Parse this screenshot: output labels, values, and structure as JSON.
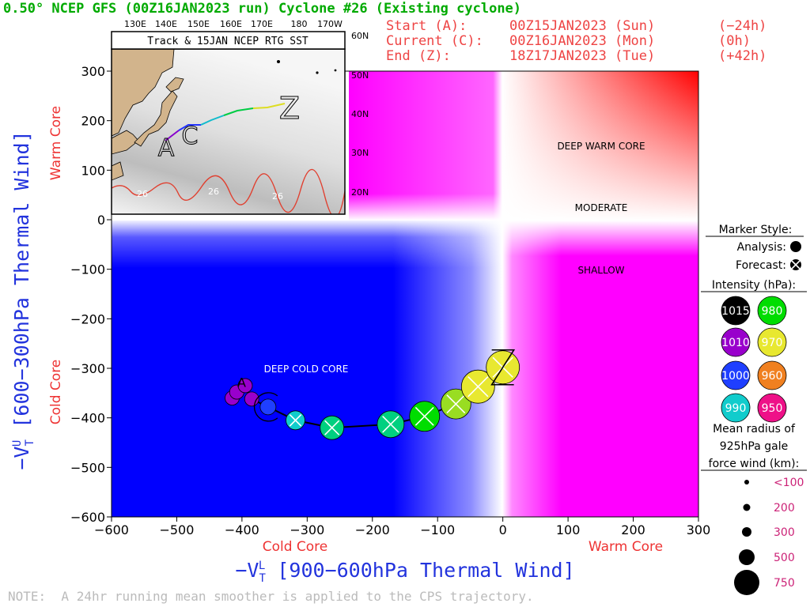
{
  "header": {
    "title": "0.50° NCEP GFS (00Z16JAN2023 run) Cyclone #26 (Existing cyclone)",
    "start_label": "Start (A):",
    "start_time": "00Z15JAN2023 (Sun)",
    "start_offset": "(−24h)",
    "current_label": "Current (C):",
    "current_time": "00Z16JAN2023 (Mon)",
    "current_offset": "(0h)",
    "end_label": "End (Z):",
    "end_time": "18Z17JAN2023 (Tue)",
    "end_offset": "(+42h)"
  },
  "inset": {
    "title": "Track & 15JAN NCEP RTG SST",
    "lon_labels": [
      "130E",
      "140E",
      "150E",
      "160E",
      "170E",
      "180",
      "170W"
    ],
    "lat_labels": [
      "60N",
      "50N",
      "40N",
      "30N",
      "20N"
    ],
    "sst_labels": [
      "26",
      "26",
      "26"
    ],
    "point_labels": {
      "start": "A",
      "current": "C",
      "end": "Z"
    }
  },
  "legend": {
    "marker_style_title": "Marker Style:",
    "analysis_label": "Analysis:",
    "forecast_label": "Forecast:",
    "intensity_title": "Intensity (hPa):",
    "intensity_items": [
      {
        "value": "1015",
        "color": "#000000",
        "text_color": "#ffffff"
      },
      {
        "value": "980",
        "color": "#00dd00",
        "text_color": "#ffffff"
      },
      {
        "value": "1010",
        "color": "#9900cc",
        "text_color": "#ffffff"
      },
      {
        "value": "970",
        "color": "#e8e830",
        "text_color": "#ffffff"
      },
      {
        "value": "1000",
        "color": "#1f3fff",
        "text_color": "#ffffff"
      },
      {
        "value": "960",
        "color": "#f08020",
        "text_color": "#ffffff"
      },
      {
        "value": "990",
        "color": "#11cccc",
        "text_color": "#ffffff"
      },
      {
        "value": "950",
        "color": "#ee1188",
        "text_color": "#ffffff"
      }
    ],
    "radius_title_1": "Mean radius of",
    "radius_title_2": "925hPa gale",
    "radius_title_3": "force wind (km):",
    "radius_items": [
      {
        "label": "<100",
        "km": 100
      },
      {
        "label": "200",
        "km": 200
      },
      {
        "label": "300",
        "km": 300
      },
      {
        "label": "500",
        "km": 500
      },
      {
        "label": "750",
        "km": 750
      }
    ]
  },
  "footer_note": "NOTE:  A 24hr running mean smoother is applied to the CPS trajectory.",
  "chart_data": {
    "type": "scatter",
    "xlabel_main": "−V",
    "xlabel_sup": "L",
    "xlabel_sub": "T",
    "xlabel_rest": " [900−600hPa Thermal Wind]",
    "ylabel_main": "−V",
    "ylabel_sup": "U",
    "ylabel_sub": "T",
    "ylabel_rest": " [600−300hPa Thermal Wind]",
    "x_side_labels": {
      "left": "Cold Core",
      "right": "Warm Core"
    },
    "y_side_labels": {
      "bottom": "Cold Core",
      "top": "Warm Core"
    },
    "xlim": [
      -600,
      300
    ],
    "ylim": [
      -600,
      300
    ],
    "x_ticks": [
      -600,
      -500,
      -400,
      -300,
      -200,
      -100,
      0,
      100,
      200,
      300
    ],
    "x_tick_labels": [
      "−600",
      "−500",
      "−400",
      "−300",
      "−200",
      "−100",
      "0",
      "100",
      "200",
      "300"
    ],
    "y_ticks": [
      300,
      200,
      100,
      0,
      -100,
      -200,
      -300,
      -400,
      -500,
      -600
    ],
    "y_tick_labels": [
      "300",
      "200",
      "100",
      "0",
      "−100",
      "−200",
      "−300",
      "−400",
      "−500",
      "−600"
    ],
    "region_labels": {
      "deep_warm": "DEEP WARM CORE",
      "moderate": "MODERATE",
      "shallow": "SHALLOW",
      "deep_cold": "DEEP COLD CORE"
    },
    "track_labels": {
      "start": "A",
      "current": "C",
      "end": "Z"
    },
    "points": [
      {
        "x": -415,
        "y": -360,
        "kind": "analysis",
        "color": "#9900cc",
        "size_px": 9
      },
      {
        "x": -408,
        "y": -348,
        "kind": "analysis",
        "color": "#9900cc",
        "size_px": 9
      },
      {
        "x": -395,
        "y": -335,
        "kind": "analysis",
        "color": "#9900cc",
        "size_px": 9
      },
      {
        "x": -385,
        "y": -362,
        "kind": "analysis",
        "color": "#9900cc",
        "size_px": 9
      },
      {
        "x": -360,
        "y": -378,
        "kind": "analysis",
        "color": "#1f3fff",
        "size_px": 10
      },
      {
        "x": -318,
        "y": -405,
        "kind": "forecast",
        "color": "#11cccc",
        "size_px": 12
      },
      {
        "x": -262,
        "y": -420,
        "kind": "forecast",
        "color": "#00d080",
        "size_px": 15
      },
      {
        "x": -172,
        "y": -413,
        "kind": "forecast",
        "color": "#00d080",
        "size_px": 17
      },
      {
        "x": -120,
        "y": -397,
        "kind": "forecast",
        "color": "#00dd00",
        "size_px": 19
      },
      {
        "x": -72,
        "y": -372,
        "kind": "forecast",
        "color": "#99dd22",
        "size_px": 19
      },
      {
        "x": -38,
        "y": -337,
        "kind": "forecast",
        "color": "#e8e830",
        "size_px": 21
      },
      {
        "x": 0,
        "y": -298,
        "kind": "forecast",
        "color": "#e8e830",
        "size_px": 21
      }
    ]
  },
  "colors": {
    "title_green": "#00aa00",
    "header_red": "#ee4444",
    "axis_blue": "#2233dd",
    "side_red": "#ee3333",
    "note_gray": "#bbbbbb"
  }
}
